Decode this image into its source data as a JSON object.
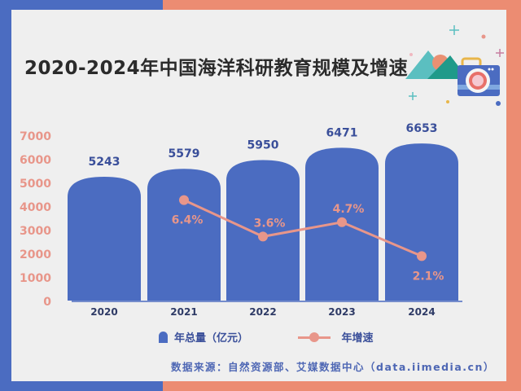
{
  "title": "2020-2024年中国海洋科研教育规模及增速",
  "legend": {
    "bars": "年总量（亿元）",
    "line": "年增速"
  },
  "source": "数据来源：自然资源部、艾媒数据中心（data.iimedia.cn）",
  "colors": {
    "bar": "#4b6cc1",
    "line": "#e8968a",
    "axis_label": "#e8968a",
    "bar_label": "#3a4f9a"
  },
  "chart_data": {
    "type": "bar+line",
    "categories": [
      "2020",
      "2021",
      "2022",
      "2023",
      "2024"
    ],
    "ylim": [
      0,
      7000
    ],
    "yticks": [
      "0",
      "1000",
      "2000",
      "3000",
      "4000",
      "5000",
      "6000",
      "7000"
    ],
    "series": [
      {
        "name": "年总量（亿元）",
        "type": "bar",
        "values": [
          5243,
          5579,
          5950,
          6471,
          6653
        ],
        "labels": [
          "5243",
          "5579",
          "5950",
          "6471",
          "6653"
        ]
      },
      {
        "name": "年增速",
        "type": "line",
        "values": [
          null,
          6.4,
          3.6,
          4.7,
          2.1
        ],
        "labels": [
          "",
          "6.4%",
          "3.6%",
          "4.7%",
          "2.1%"
        ]
      }
    ],
    "grid": false,
    "legend_position": "bottom"
  }
}
